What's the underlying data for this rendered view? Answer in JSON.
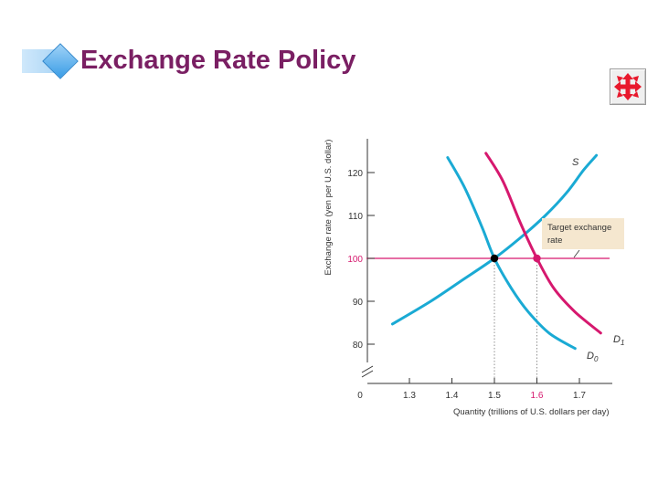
{
  "slide": {
    "title": "Exchange Rate Policy"
  },
  "toolbar": {
    "move_button_icon": "four-way-move-arrows-icon",
    "move_button_color": "#e8182c"
  },
  "chart_data": {
    "type": "line",
    "xlabel": "Quantity (trillions of U.S. dollars per day)",
    "ylabel": "Exchange rate (yen per U.S. dollar)",
    "xlim": [
      1.2,
      1.8
    ],
    "ylim": [
      75,
      125
    ],
    "x_ticks": [
      1.3,
      1.4,
      1.5,
      1.6,
      1.7
    ],
    "y_ticks": [
      80,
      90,
      100,
      110,
      120
    ],
    "origin_label": "0",
    "axis_break": true,
    "grid": false,
    "series": [
      {
        "name": "S",
        "color": "#1aaad4",
        "points": [
          [
            1.26,
            84.7
          ],
          [
            1.35,
            90.0
          ],
          [
            1.43,
            95.3
          ],
          [
            1.5,
            100.0
          ],
          [
            1.56,
            104.7
          ],
          [
            1.62,
            110.0
          ],
          [
            1.67,
            115.3
          ],
          [
            1.71,
            120.6
          ],
          [
            1.74,
            124.0
          ]
        ]
      },
      {
        "name": "D0",
        "label_main": "D",
        "label_sub": "0",
        "color": "#1aaad4",
        "points": [
          [
            1.39,
            123.5
          ],
          [
            1.43,
            116.5
          ],
          [
            1.47,
            107.5
          ],
          [
            1.5,
            100.0
          ],
          [
            1.54,
            93.0
          ],
          [
            1.58,
            87.5
          ],
          [
            1.63,
            82.5
          ],
          [
            1.69,
            79.0
          ]
        ]
      },
      {
        "name": "D1",
        "label_main": "D",
        "label_sub": "1",
        "color": "#d6186e",
        "points": [
          [
            1.48,
            124.5
          ],
          [
            1.52,
            118.0
          ],
          [
            1.56,
            108.5
          ],
          [
            1.6,
            100.0
          ],
          [
            1.64,
            93.0
          ],
          [
            1.69,
            87.5
          ],
          [
            1.75,
            82.6
          ]
        ]
      },
      {
        "name": "Target exchange rate",
        "color": "#d6186e",
        "points": [
          [
            1.2,
            100
          ],
          [
            1.77,
            100
          ]
        ]
      }
    ],
    "equilibria": [
      {
        "x": 1.5,
        "y": 100,
        "color": "#000000"
      },
      {
        "x": 1.6,
        "y": 100,
        "color": "#d6186e"
      }
    ],
    "highlighted_tick": {
      "value": 1.6,
      "color": "#d6186e"
    },
    "highlighted_ytick": {
      "value": 100,
      "color": "#d6186e"
    },
    "annotation": {
      "text_line1": "Target exchange",
      "text_line2": "rate",
      "background": "#f5e7cf",
      "points_to": {
        "x": 1.69,
        "y": 101
      }
    }
  }
}
